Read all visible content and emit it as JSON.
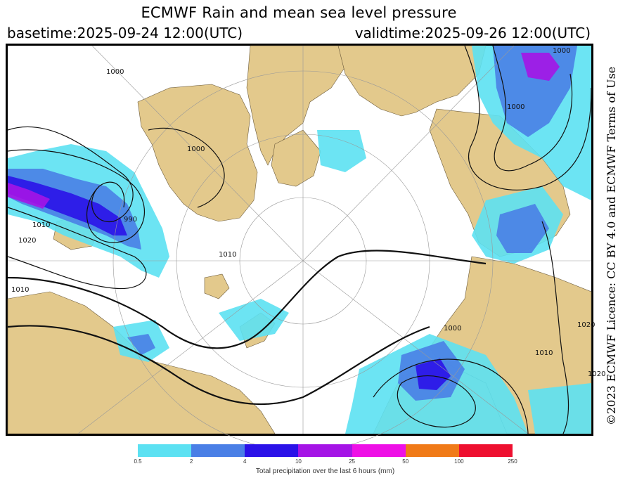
{
  "header": {
    "title": "ECMWF Rain and mean sea level pressure",
    "basetime": "basetime:2025-09-24 12:00(UTC)",
    "validtime": "validtime:2025-09-26 12:00(UTC)"
  },
  "licence": "©2023 ECMWF Licence: CC BY 4.0 and ECMWF Terms of Use",
  "map": {
    "isobar_labels": [
      "1000",
      "1000",
      "990",
      "1010",
      "1020",
      "1000",
      "1000",
      "1010",
      "1020",
      "1010",
      "1010",
      "1020",
      "1000"
    ],
    "colors": {
      "land": "#e3c98c",
      "sea": "#ffffff",
      "isobar": "#111111",
      "grid": "#999999"
    }
  },
  "colorbar": {
    "label": "Total precipitation over the last 6 hours (mm)",
    "ticks": [
      "0.5",
      "2",
      "4",
      "10",
      "25",
      "50",
      "100",
      "250"
    ],
    "colors": [
      "#5ce1f2",
      "#4a7fe6",
      "#2b12e8",
      "#a514e6",
      "#ee10e6",
      "#f07a18",
      "#ee1030"
    ]
  }
}
